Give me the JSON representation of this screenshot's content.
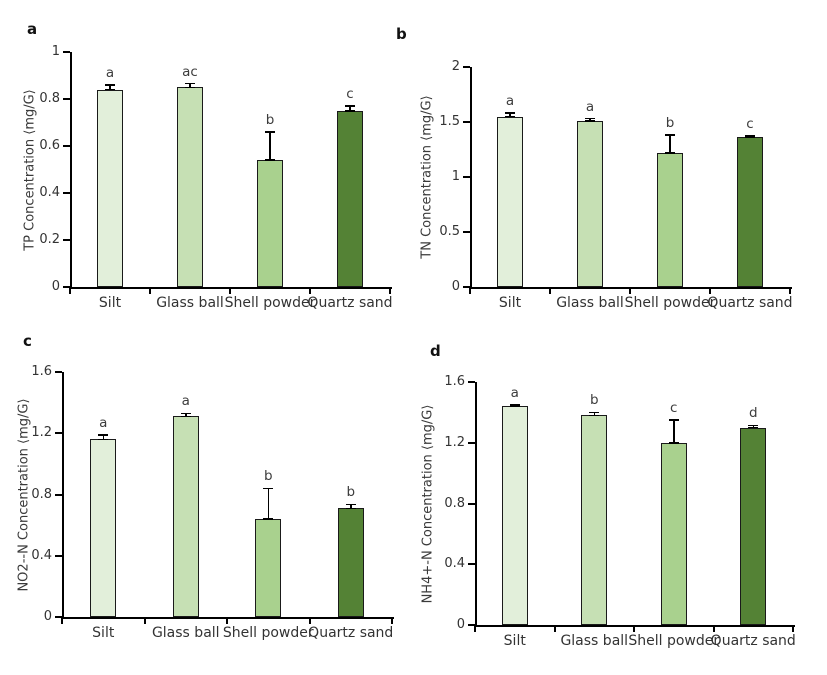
{
  "style": {
    "bar_fill_colors": [
      "#e2efda",
      "#c6e0b4",
      "#a9d18e",
      "#548235"
    ],
    "bar_border_color": "#1a1a1a",
    "axis_color": "#000000",
    "text_color": "#333333"
  },
  "chart_data": [
    {
      "type": "bar",
      "panel_label": "a",
      "title": "",
      "xlabel": "",
      "ylabel": "TP Concentration ⟨mg/G⟩",
      "ylim": [
        0,
        1
      ],
      "grid": false,
      "legend": "none",
      "yticks": [
        {
          "value": 0,
          "label": "0"
        },
        {
          "value": 0.2,
          "label": "0.2"
        },
        {
          "value": 0.4,
          "label": "0.4"
        },
        {
          "value": 0.6,
          "label": "0.6"
        },
        {
          "value": 0.8,
          "label": "0.8"
        },
        {
          "value": 1,
          "label": "1"
        }
      ],
      "categories": [
        "Silt",
        "Glass ball",
        "Shell powder",
        "Quartz sand"
      ],
      "values": [
        0.84,
        0.85,
        0.54,
        0.75
      ],
      "errors": [
        0.02,
        0.015,
        0.12,
        0.02
      ],
      "sig_letters": [
        "a",
        "ac",
        "b",
        "c"
      ]
    },
    {
      "type": "bar",
      "panel_label": "b",
      "title": "",
      "xlabel": "",
      "ylabel": "TN Concentration ⟨mg/G⟩",
      "ylim": [
        0,
        2
      ],
      "grid": false,
      "legend": "none",
      "yticks": [
        {
          "value": 0,
          "label": "0"
        },
        {
          "value": 0.5,
          "label": "0.5"
        },
        {
          "value": 1,
          "label": "1"
        },
        {
          "value": 1.5,
          "label": "1.5"
        },
        {
          "value": 2,
          "label": "2"
        }
      ],
      "categories": [
        "Silt",
        "Glass ball",
        "Shell powder",
        "Quartz sand"
      ],
      "values": [
        1.55,
        1.51,
        1.22,
        1.36
      ],
      "errors": [
        0.03,
        0.02,
        0.16,
        0.015
      ],
      "sig_letters": [
        "a",
        "a",
        "b",
        "c"
      ]
    },
    {
      "type": "bar",
      "panel_label": "c",
      "title": "",
      "xlabel": "",
      "ylabel": "NO2--N Concentration ⟨mg/G⟩",
      "ylim": [
        0,
        1.6
      ],
      "grid": false,
      "legend": "none",
      "yticks": [
        {
          "value": 0,
          "label": "0"
        },
        {
          "value": 0.4,
          "label": "0.4"
        },
        {
          "value": 0.8,
          "label": "0.8"
        },
        {
          "value": 1.2,
          "label": "1.2"
        },
        {
          "value": 1.6,
          "label": "1.6"
        }
      ],
      "categories": [
        "Silt",
        "Glass ball",
        "Shell powder",
        "Quartz sand"
      ],
      "values": [
        1.16,
        1.31,
        0.64,
        0.71
      ],
      "errors": [
        0.03,
        0.02,
        0.2,
        0.025
      ],
      "sig_letters": [
        "a",
        "a",
        "b",
        "b"
      ]
    },
    {
      "type": "bar",
      "panel_label": "d",
      "title": "",
      "xlabel": "",
      "ylabel": "NH4+-N Concentration ⟨mg/G⟩",
      "ylim": [
        0,
        1.6
      ],
      "grid": false,
      "legend": "none",
      "yticks": [
        {
          "value": 0,
          "label": "0"
        },
        {
          "value": 0.4,
          "label": "0.4"
        },
        {
          "value": 0.8,
          "label": "0.8"
        },
        {
          "value": 1.2,
          "label": "1.2"
        },
        {
          "value": 1.6,
          "label": "1.6"
        }
      ],
      "categories": [
        "Silt",
        "Glass ball",
        "Shell powder",
        "Quartz sand"
      ],
      "values": [
        1.44,
        1.38,
        1.2,
        1.3
      ],
      "errors": [
        0.01,
        0.02,
        0.15,
        0.015
      ],
      "sig_letters": [
        "a",
        "b",
        "c",
        "d"
      ]
    }
  ]
}
